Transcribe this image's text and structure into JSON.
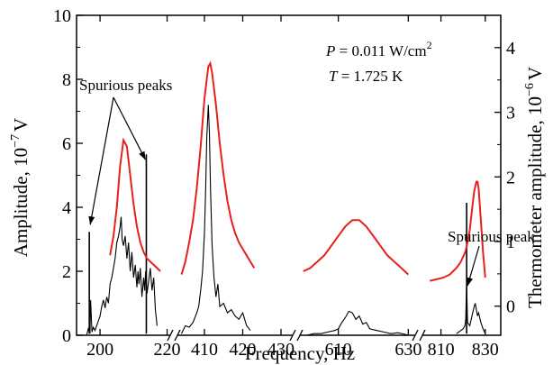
{
  "chart_data": {
    "type": "line",
    "xlabel": "Frequency, Hz",
    "ylabel_left": {
      "text": "Amplitude, 10",
      "exp": "−7",
      "unit": "V"
    },
    "ylabel_right": {
      "text": "Thermometer amplitude, 10",
      "exp": "−6",
      "unit": "V"
    },
    "ylim_left": [
      0,
      10
    ],
    "ylim_right": [
      -0.45,
      4.5
    ],
    "yticks_left": [
      "0",
      "2",
      "4",
      "6",
      "8",
      "10"
    ],
    "yticks_right": [
      "0",
      "1",
      "2",
      "3",
      "4"
    ],
    "colors": {
      "amplitude": "#e8201a",
      "thermometer": "#000000",
      "axes": "#000000"
    },
    "annotations": {
      "power_label": "P",
      "power_value": " = 0.011 W/cm",
      "power_exp": "2",
      "temp_label": "T",
      "temp_value": " = 1.725 K",
      "spurious_peaks": "Spurious peaks",
      "spurious_peak": "Spurious peak"
    },
    "panels": [
      {
        "xrange": [
          193,
          222
        ],
        "xticks": [
          200,
          220
        ],
        "tick_labels": [
          "200",
          "220"
        ],
        "amplitude": {
          "x": [
            203,
            204,
            205,
            206,
            207,
            208,
            209,
            210,
            211,
            212,
            213,
            214,
            215,
            216,
            217,
            218
          ],
          "y": [
            2.5,
            3.1,
            4.0,
            5.3,
            6.1,
            5.9,
            5.0,
            4.1,
            3.4,
            2.9,
            2.6,
            2.4,
            2.3,
            2.2,
            2.1,
            2.0
          ]
        },
        "thermometer": {
          "x": [
            196,
            196.5,
            197,
            197.2,
            197.6,
            198,
            198.5,
            199,
            199.5,
            200,
            200.5,
            201,
            201.5,
            202,
            202.5,
            203,
            203.5,
            204,
            204.5,
            205,
            205.5,
            206,
            206.3,
            206.6,
            207,
            207.5,
            208,
            208.5,
            209,
            209.5,
            210,
            210.5,
            211,
            211.3,
            211.6,
            212,
            212.5,
            213,
            213.3,
            213.6,
            214,
            214.5,
            215,
            215.5,
            216,
            216.5,
            217
          ],
          "y": [
            0.0,
            0.2,
            0.05,
            1.1,
            0.1,
            0.25,
            0.15,
            0.3,
            0.45,
            0.6,
            0.9,
            1.1,
            0.85,
            1.2,
            1.0,
            1.6,
            1.8,
            2.1,
            2.4,
            2.9,
            3.1,
            3.4,
            3.7,
            3.0,
            2.8,
            3.1,
            2.4,
            2.9,
            2.0,
            2.6,
            1.8,
            2.2,
            1.5,
            2.0,
            1.6,
            2.1,
            1.2,
            1.8,
            1.4,
            2.0,
            1.3,
            1.7,
            2.1,
            1.4,
            1.8,
            0.8,
            0.3
          ]
        },
        "spurious": [
          {
            "x": 196.8,
            "y": 1.15
          },
          {
            "x": 213.8,
            "y": 2.35
          }
        ]
      },
      {
        "xrange": [
          402,
          434
        ],
        "xticks": [
          410,
          420,
          430
        ],
        "tick_labels": [
          "410",
          "420",
          "430"
        ],
        "amplitude": {
          "x": [
            404,
            405,
            406,
            407,
            408,
            409,
            410,
            411,
            411.5,
            412,
            413,
            414,
            415,
            416,
            417,
            418,
            419,
            420,
            421,
            422,
            423
          ],
          "y": [
            1.9,
            2.3,
            2.9,
            3.6,
            4.6,
            5.9,
            7.4,
            8.4,
            8.5,
            8.2,
            7.2,
            6.0,
            5.0,
            4.2,
            3.6,
            3.2,
            2.9,
            2.7,
            2.5,
            2.3,
            2.1
          ]
        },
        "thermometer": {
          "x": [
            404,
            405,
            406,
            407,
            408,
            408.5,
            409,
            409.5,
            410,
            410.3,
            410.6,
            411,
            411.3,
            411.6,
            412,
            412.5,
            413,
            413.5,
            414,
            415,
            416,
            417,
            418,
            419,
            420,
            421,
            422
          ],
          "y": [
            0.05,
            0.3,
            0.25,
            0.4,
            0.7,
            0.9,
            1.4,
            2.0,
            3.2,
            4.5,
            6.2,
            7.2,
            6.3,
            4.5,
            2.8,
            1.8,
            1.2,
            1.6,
            0.9,
            1.0,
            0.7,
            0.8,
            0.6,
            0.5,
            0.7,
            0.3,
            0.15
          ]
        },
        "spurious": []
      },
      {
        "xrange": [
          598,
          633
        ],
        "xticks": [
          610,
          630
        ],
        "tick_labels": [
          "610",
          "630"
        ],
        "amplitude": {
          "x": [
            600,
            602,
            604,
            606,
            608,
            610,
            612,
            614,
            616,
            618,
            620,
            622,
            624,
            626,
            628,
            630
          ],
          "y": [
            2.0,
            2.1,
            2.3,
            2.5,
            2.8,
            3.1,
            3.4,
            3.6,
            3.6,
            3.4,
            3.1,
            2.8,
            2.5,
            2.3,
            2.1,
            1.9
          ]
        },
        "thermometer": {
          "x": [
            601,
            603,
            605,
            607,
            609,
            610,
            611,
            612,
            613,
            614,
            615,
            616,
            617,
            618,
            619,
            621,
            623,
            625,
            627,
            629,
            630
          ],
          "y": [
            0.0,
            0.05,
            0.05,
            0.1,
            0.15,
            0.2,
            0.4,
            0.55,
            0.75,
            0.7,
            0.5,
            0.6,
            0.35,
            0.4,
            0.2,
            0.15,
            0.1,
            0.05,
            0.08,
            0.03,
            0.0
          ]
        },
        "spurious": []
      },
      {
        "xrange": [
          800,
          837
        ],
        "xticks": [
          810,
          830
        ],
        "tick_labels": [
          "810",
          "830"
        ],
        "amplitude": {
          "x": [
            805,
            808,
            811,
            814,
            817,
            819,
            821,
            822,
            823,
            824,
            825,
            826,
            826.5,
            827,
            828,
            829,
            830
          ],
          "y": [
            1.7,
            1.75,
            1.8,
            1.9,
            2.1,
            2.3,
            2.6,
            2.9,
            3.3,
            3.9,
            4.5,
            4.8,
            4.8,
            4.6,
            3.6,
            2.6,
            1.8
          ]
        },
        "thermometer": {
          "x": [
            817,
            818,
            819,
            820,
            820.8,
            821.2,
            821.6,
            822,
            823,
            824,
            825,
            825.5,
            826,
            826.5,
            827,
            828,
            829,
            830
          ],
          "y": [
            0.05,
            0.1,
            0.15,
            0.2,
            0.3,
            0.5,
            1.6,
            0.4,
            0.3,
            0.6,
            0.9,
            1.0,
            0.8,
            0.6,
            0.7,
            0.4,
            0.2,
            0.05
          ]
        },
        "spurious": [
          {
            "x": 821.6,
            "y": 1.6
          }
        ]
      }
    ]
  }
}
